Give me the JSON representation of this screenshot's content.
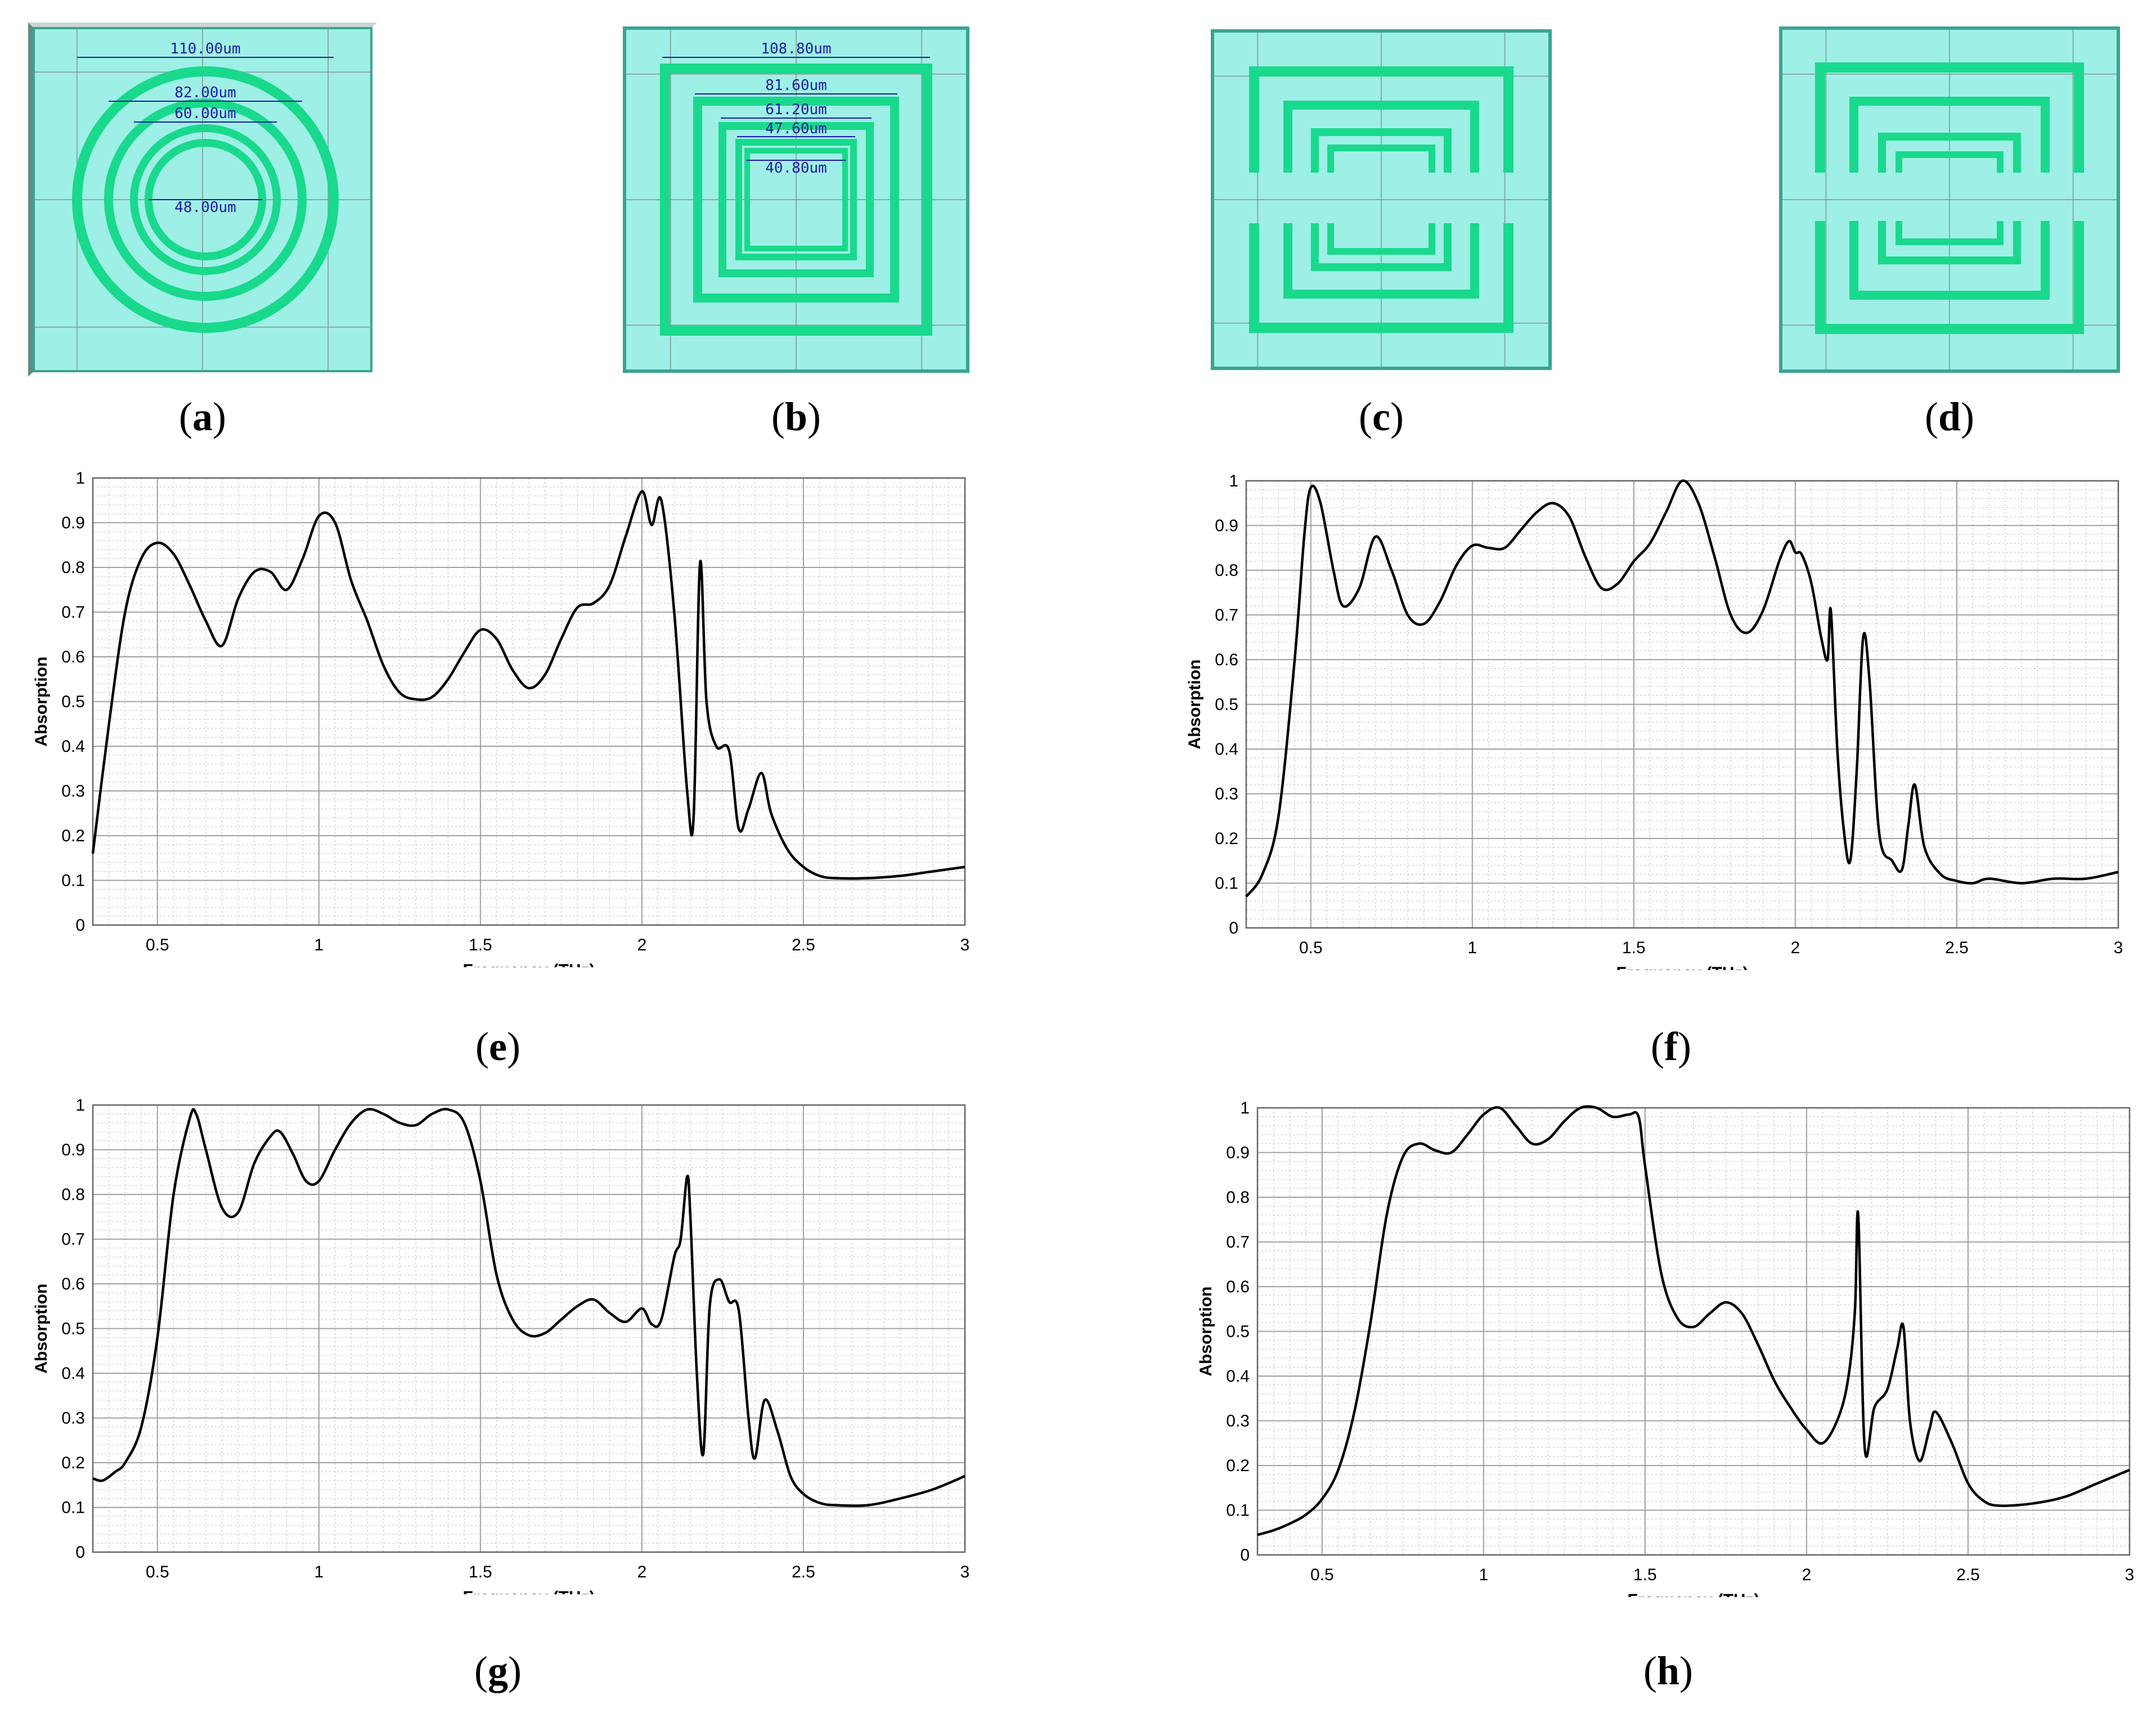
{
  "colors": {
    "substrate": "#9ef0e6",
    "metal": "#19d98c",
    "metal_edge": "#0b7a4e",
    "frame": "#3aa392",
    "grid": "#8a8a8a",
    "dim": "#1a1aa8",
    "curve": "#000000"
  },
  "structures": [
    {
      "caption": "a",
      "kind": "rings",
      "dims": [
        "110.00um",
        "82.00um",
        "60.00um",
        "48.00um"
      ]
    },
    {
      "caption": "b",
      "kind": "squares",
      "dims": [
        "108.80um",
        "81.60um",
        "61.20um",
        "47.60um",
        "40.80um"
      ]
    },
    {
      "caption": "c",
      "kind": "split-vertical",
      "dims": []
    },
    {
      "caption": "d",
      "kind": "split-horizontal",
      "dims": []
    }
  ],
  "chart_data": [
    {
      "caption": "e",
      "type": "line",
      "xlabel": "Frequency (THz)",
      "ylabel": "Absorption",
      "xlim": [
        0.3,
        3
      ],
      "ylim": [
        0,
        1
      ],
      "xticks": [
        "0.5",
        "1",
        "1.5",
        "2",
        "2.5",
        "3"
      ],
      "yticks": [
        "0",
        "0.1",
        "0.2",
        "0.3",
        "0.4",
        "0.5",
        "0.6",
        "0.7",
        "0.8",
        "0.9",
        "1"
      ],
      "x": [
        0.3,
        0.35,
        0.4,
        0.45,
        0.5,
        0.55,
        0.6,
        0.65,
        0.7,
        0.75,
        0.8,
        0.85,
        0.9,
        0.95,
        1.0,
        1.05,
        1.1,
        1.15,
        1.2,
        1.25,
        1.3,
        1.35,
        1.4,
        1.45,
        1.5,
        1.55,
        1.6,
        1.65,
        1.7,
        1.75,
        1.8,
        1.85,
        1.9,
        1.95,
        2.0,
        2.03,
        2.06,
        2.1,
        2.14,
        2.16,
        2.18,
        2.2,
        2.23,
        2.27,
        2.3,
        2.33,
        2.37,
        2.4,
        2.45,
        2.5,
        2.55,
        2.6,
        2.7,
        2.8,
        2.9,
        3.0
      ],
      "y": [
        0.16,
        0.45,
        0.7,
        0.82,
        0.855,
        0.83,
        0.76,
        0.68,
        0.625,
        0.73,
        0.79,
        0.79,
        0.75,
        0.82,
        0.915,
        0.9,
        0.77,
        0.68,
        0.58,
        0.52,
        0.505,
        0.51,
        0.55,
        0.61,
        0.66,
        0.64,
        0.57,
        0.53,
        0.56,
        0.64,
        0.71,
        0.72,
        0.76,
        0.87,
        0.97,
        0.895,
        0.95,
        0.7,
        0.3,
        0.24,
        0.81,
        0.5,
        0.4,
        0.39,
        0.215,
        0.26,
        0.34,
        0.25,
        0.17,
        0.13,
        0.11,
        0.105,
        0.105,
        0.11,
        0.12,
        0.13
      ]
    },
    {
      "caption": "f",
      "type": "line",
      "xlabel": "Frequency (THz)",
      "ylabel": "Absorption",
      "xlim": [
        0.3,
        3
      ],
      "ylim": [
        0,
        1
      ],
      "xticks": [
        "0.5",
        "1",
        "1.5",
        "2",
        "2.5",
        "3"
      ],
      "yticks": [
        "0",
        "0.1",
        "0.2",
        "0.3",
        "0.4",
        "0.5",
        "0.6",
        "0.7",
        "0.8",
        "0.9",
        "1"
      ],
      "x": [
        0.3,
        0.35,
        0.4,
        0.45,
        0.48,
        0.5,
        0.53,
        0.57,
        0.6,
        0.65,
        0.7,
        0.75,
        0.8,
        0.85,
        0.9,
        0.95,
        1.0,
        1.05,
        1.1,
        1.15,
        1.2,
        1.25,
        1.3,
        1.35,
        1.4,
        1.45,
        1.5,
        1.55,
        1.6,
        1.65,
        1.7,
        1.75,
        1.8,
        1.85,
        1.9,
        1.95,
        1.98,
        2.0,
        2.02,
        2.05,
        2.08,
        2.1,
        2.11,
        2.13,
        2.15,
        2.17,
        2.19,
        2.21,
        2.23,
        2.26,
        2.3,
        2.33,
        2.35,
        2.37,
        2.4,
        2.45,
        2.5,
        2.55,
        2.6,
        2.7,
        2.8,
        2.9,
        3.0
      ],
      "y": [
        0.07,
        0.12,
        0.25,
        0.6,
        0.88,
        0.985,
        0.95,
        0.8,
        0.72,
        0.76,
        0.875,
        0.8,
        0.7,
        0.68,
        0.73,
        0.81,
        0.855,
        0.85,
        0.85,
        0.89,
        0.93,
        0.95,
        0.92,
        0.83,
        0.76,
        0.77,
        0.82,
        0.86,
        0.93,
        1.0,
        0.95,
        0.83,
        0.7,
        0.66,
        0.71,
        0.82,
        0.865,
        0.84,
        0.835,
        0.77,
        0.65,
        0.6,
        0.71,
        0.4,
        0.22,
        0.15,
        0.35,
        0.65,
        0.55,
        0.21,
        0.15,
        0.13,
        0.23,
        0.32,
        0.18,
        0.12,
        0.105,
        0.1,
        0.11,
        0.1,
        0.11,
        0.11,
        0.125
      ]
    },
    {
      "caption": "g",
      "type": "line",
      "xlabel": "Frequency (THz)",
      "ylabel": "Absorption",
      "xlim": [
        0.3,
        3
      ],
      "ylim": [
        0,
        1
      ],
      "xticks": [
        "0.5",
        "1",
        "1.5",
        "2",
        "2.5",
        "3"
      ],
      "yticks": [
        "0",
        "0.1",
        "0.2",
        "0.3",
        "0.4",
        "0.5",
        "0.6",
        "0.7",
        "0.8",
        "0.9",
        "1"
      ],
      "x": [
        0.3,
        0.33,
        0.37,
        0.4,
        0.45,
        0.5,
        0.55,
        0.6,
        0.62,
        0.65,
        0.7,
        0.75,
        0.8,
        0.85,
        0.88,
        0.92,
        0.96,
        1.0,
        1.05,
        1.1,
        1.15,
        1.2,
        1.25,
        1.3,
        1.35,
        1.4,
        1.45,
        1.5,
        1.55,
        1.6,
        1.65,
        1.7,
        1.75,
        1.8,
        1.85,
        1.9,
        1.95,
        2.0,
        2.03,
        2.06,
        2.1,
        2.12,
        2.14,
        2.15,
        2.17,
        2.19,
        2.21,
        2.24,
        2.27,
        2.3,
        2.33,
        2.35,
        2.38,
        2.42,
        2.46,
        2.5,
        2.55,
        2.6,
        2.7,
        2.8,
        2.9,
        3.0
      ],
      "y": [
        0.165,
        0.16,
        0.18,
        0.2,
        0.28,
        0.48,
        0.8,
        0.97,
        0.98,
        0.9,
        0.77,
        0.76,
        0.87,
        0.93,
        0.94,
        0.89,
        0.83,
        0.83,
        0.9,
        0.96,
        0.99,
        0.98,
        0.96,
        0.955,
        0.98,
        0.99,
        0.96,
        0.83,
        0.62,
        0.52,
        0.485,
        0.49,
        0.52,
        0.55,
        0.565,
        0.535,
        0.515,
        0.545,
        0.51,
        0.52,
        0.66,
        0.7,
        0.84,
        0.75,
        0.4,
        0.22,
        0.55,
        0.61,
        0.56,
        0.54,
        0.3,
        0.21,
        0.34,
        0.27,
        0.17,
        0.13,
        0.11,
        0.105,
        0.105,
        0.12,
        0.14,
        0.17
      ]
    },
    {
      "caption": "h",
      "type": "line",
      "xlabel": "Frequency (THz)",
      "ylabel": "Absorption",
      "xlim": [
        0.3,
        3
      ],
      "ylim": [
        0,
        1
      ],
      "xticks": [
        "0.5",
        "1",
        "1.5",
        "2",
        "2.5",
        "3"
      ],
      "yticks": [
        "0",
        "0.1",
        "0.2",
        "0.3",
        "0.4",
        "0.5",
        "0.6",
        "0.7",
        "0.8",
        "0.9",
        "1"
      ],
      "x": [
        0.3,
        0.35,
        0.4,
        0.45,
        0.5,
        0.55,
        0.6,
        0.65,
        0.7,
        0.75,
        0.8,
        0.85,
        0.9,
        0.95,
        1.0,
        1.05,
        1.1,
        1.15,
        1.2,
        1.25,
        1.3,
        1.35,
        1.4,
        1.45,
        1.48,
        1.5,
        1.55,
        1.6,
        1.65,
        1.7,
        1.75,
        1.8,
        1.85,
        1.9,
        1.95,
        2.0,
        2.05,
        2.1,
        2.13,
        2.15,
        2.16,
        2.18,
        2.21,
        2.25,
        2.28,
        2.3,
        2.32,
        2.35,
        2.38,
        2.4,
        2.45,
        2.5,
        2.55,
        2.6,
        2.7,
        2.8,
        2.9,
        3.0
      ],
      "y": [
        0.045,
        0.055,
        0.07,
        0.09,
        0.125,
        0.19,
        0.32,
        0.52,
        0.76,
        0.89,
        0.92,
        0.905,
        0.9,
        0.94,
        0.985,
        1.0,
        0.96,
        0.92,
        0.93,
        0.97,
        1.0,
        1.0,
        0.98,
        0.985,
        0.98,
        0.87,
        0.63,
        0.53,
        0.51,
        0.54,
        0.565,
        0.54,
        0.47,
        0.39,
        0.33,
        0.28,
        0.25,
        0.31,
        0.4,
        0.55,
        0.76,
        0.24,
        0.33,
        0.37,
        0.46,
        0.51,
        0.3,
        0.21,
        0.28,
        0.32,
        0.25,
        0.16,
        0.12,
        0.11,
        0.115,
        0.13,
        0.16,
        0.19
      ]
    }
  ]
}
